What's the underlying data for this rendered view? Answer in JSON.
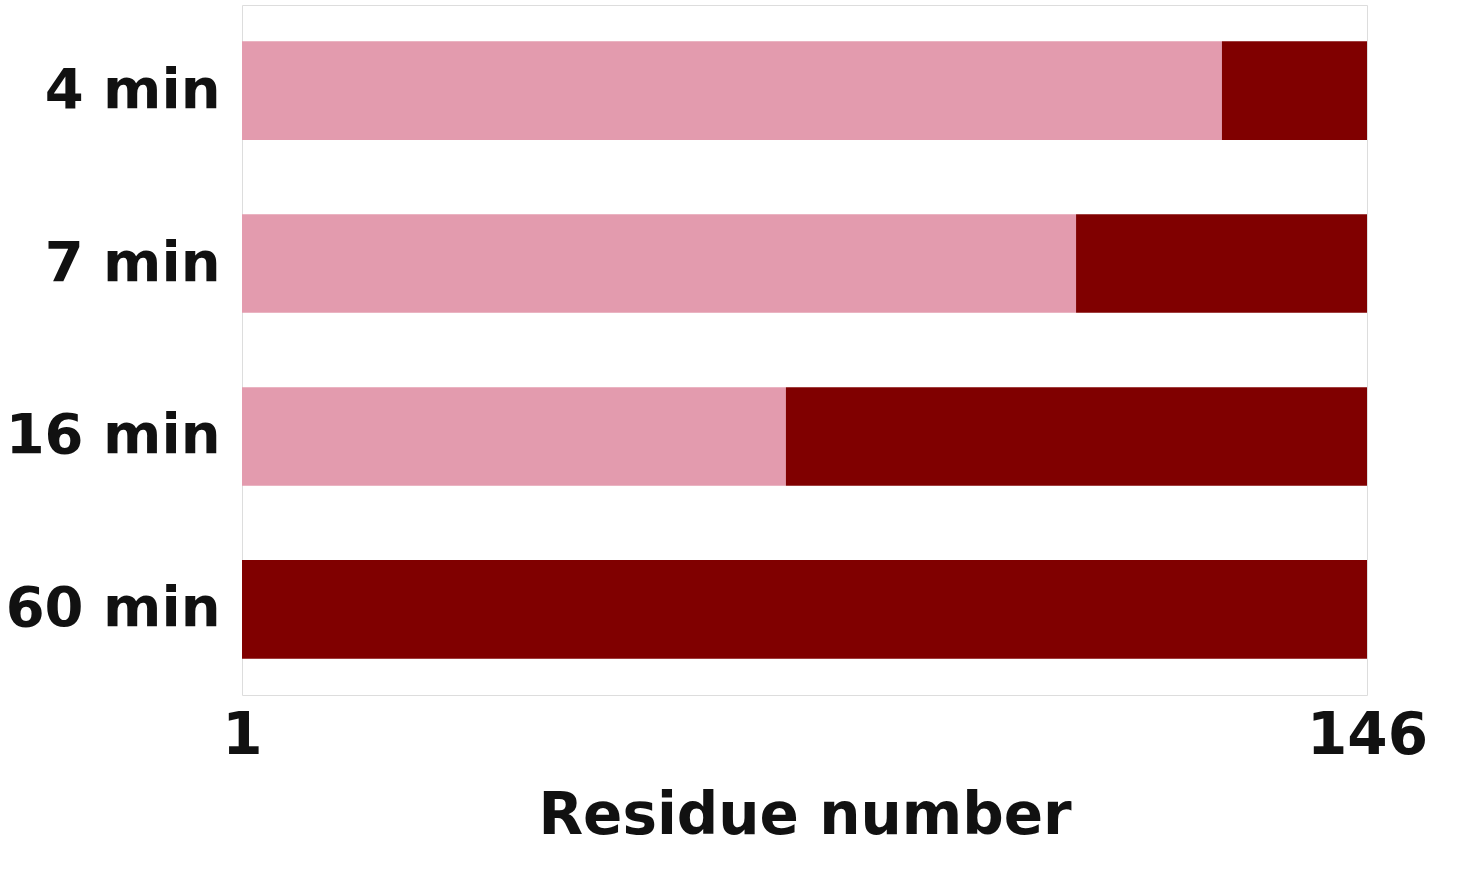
{
  "chart_data": {
    "type": "bar",
    "orientation": "horizontal",
    "xlabel": "Residue number",
    "categories": [
      "4 min",
      "7 min",
      "16 min",
      "60 min"
    ],
    "xlim": [
      1,
      146
    ],
    "xticks": [
      1,
      146
    ],
    "series": [
      {
        "color": "#e39bae",
        "base": [
          1,
          1,
          1,
          null
        ],
        "values": [
          126.3,
          107.5,
          70.1,
          null
        ]
      },
      {
        "color": "#800000",
        "base": [
          127.3,
          108.5,
          71.1,
          1
        ],
        "values": [
          18.7,
          37.5,
          74.9,
          145
        ]
      }
    ]
  }
}
